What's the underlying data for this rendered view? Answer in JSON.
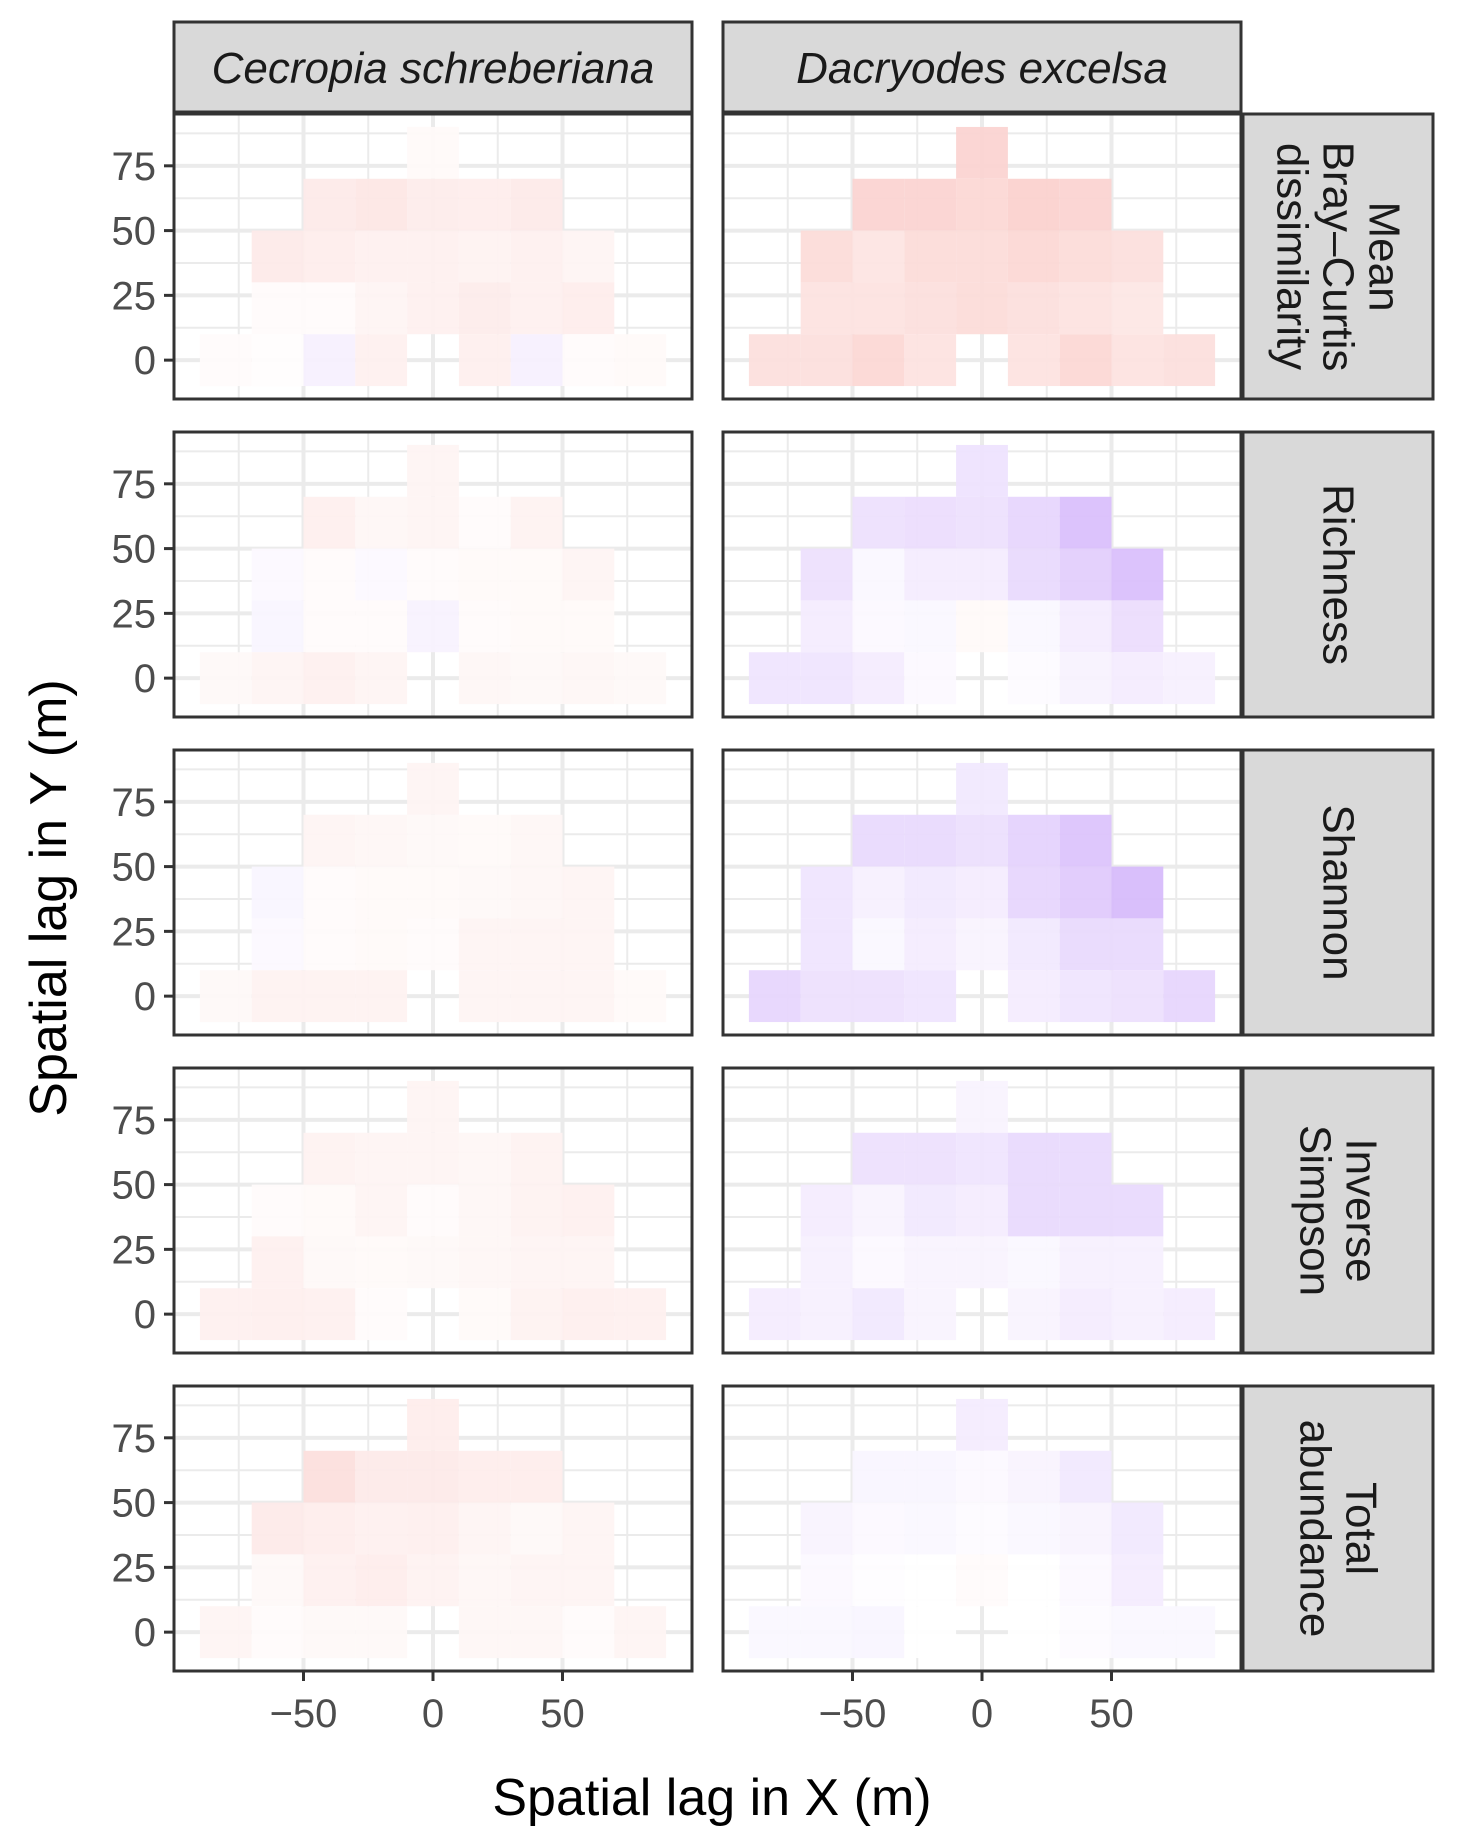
{
  "chart_data": {
    "type": "heatmap",
    "layout": "faceted grid, 5 rows x 2 columns",
    "xlabel": "Spatial lag in X (m)",
    "ylabel": "Spatial lag in Y (m)",
    "x_ticks": [
      -50,
      0,
      50
    ],
    "y_ticks": [
      0,
      25,
      50,
      75
    ],
    "xlim": [
      -100,
      100
    ],
    "ylim": [
      -15,
      95
    ],
    "bin_size_x": 20,
    "bin_size_y": 20,
    "x_bins": [
      -80,
      -60,
      -40,
      -20,
      0,
      20,
      40,
      60,
      80
    ],
    "y_bins": [
      0,
      20,
      40,
      60,
      80
    ],
    "value_encoding": "diverging: positive = red tint, negative = purple tint, 0 = white",
    "colors": {
      "positive": "#f0493d",
      "negative": "#8e3ff5",
      "neutral": "#ffffff",
      "strip_fill": "#d9d9d9",
      "panel_border": "#333333",
      "grid": "#ebebeb",
      "text": "#4d4d4d"
    },
    "column_strips": [
      {
        "label": "Cecropia schreberiana",
        "italic": true
      },
      {
        "label": "Dacryodes excelsa",
        "italic": true
      }
    ],
    "row_strips": [
      {
        "lines": [
          "Mean",
          "Bray–Curtis",
          "dissimilarity"
        ]
      },
      {
        "lines": [
          "Richness"
        ]
      },
      {
        "lines": [
          "Shannon"
        ]
      },
      {
        "lines": [
          "Inverse",
          "Simpson"
        ]
      },
      {
        "lines": [
          "Total",
          "abundance"
        ]
      }
    ],
    "panels": [
      {
        "row": "Mean Bray–Curtis dissimilarity",
        "species": "Cecropia schreberiana",
        "cells": [
          {
            "y": 80,
            "v": [
              null,
              null,
              null,
              null,
              0.03,
              null,
              null,
              null,
              null
            ]
          },
          {
            "y": 60,
            "v": [
              null,
              null,
              0.12,
              0.14,
              0.11,
              0.1,
              0.12,
              null,
              null
            ]
          },
          {
            "y": 40,
            "v": [
              null,
              0.12,
              0.1,
              0.08,
              0.08,
              0.07,
              0.08,
              0.06,
              null
            ]
          },
          {
            "y": 20,
            "v": [
              null,
              0.02,
              0.02,
              0.06,
              0.08,
              0.11,
              0.08,
              0.1,
              null
            ]
          },
          {
            "y": 0,
            "v": [
              0.02,
              0.01,
              -0.08,
              0.08,
              null,
              0.09,
              -0.08,
              0.02,
              0.03
            ]
          }
        ]
      },
      {
        "row": "Mean Bray–Curtis dissimilarity",
        "species": "Dacryodes excelsa",
        "cells": [
          {
            "y": 80,
            "v": [
              null,
              null,
              null,
              null,
              0.24,
              null,
              null,
              null,
              null
            ]
          },
          {
            "y": 60,
            "v": [
              null,
              null,
              0.24,
              0.24,
              0.22,
              0.26,
              0.24,
              null,
              null
            ]
          },
          {
            "y": 40,
            "v": [
              null,
              0.2,
              0.15,
              0.2,
              0.2,
              0.22,
              0.2,
              0.18,
              null
            ]
          },
          {
            "y": 20,
            "v": [
              null,
              0.16,
              0.16,
              0.18,
              0.2,
              0.18,
              0.16,
              0.14,
              null
            ]
          },
          {
            "y": 0,
            "v": [
              0.18,
              0.18,
              0.22,
              0.16,
              null,
              0.16,
              0.22,
              0.16,
              0.18
            ]
          }
        ]
      },
      {
        "row": "Richness",
        "species": "Cecropia schreberiana",
        "cells": [
          {
            "y": 80,
            "v": [
              null,
              null,
              null,
              null,
              0.06,
              null,
              null,
              null,
              null
            ]
          },
          {
            "y": 60,
            "v": [
              null,
              null,
              0.09,
              0.05,
              0.06,
              0.02,
              0.07,
              null,
              null
            ]
          },
          {
            "y": 40,
            "v": [
              null,
              -0.03,
              0.02,
              -0.03,
              0.02,
              0.03,
              0.03,
              0.06,
              null
            ]
          },
          {
            "y": 20,
            "v": [
              null,
              -0.05,
              0.02,
              0.02,
              -0.07,
              0.02,
              0.03,
              0.03,
              null
            ]
          },
          {
            "y": 0,
            "v": [
              0.04,
              0.06,
              0.08,
              0.06,
              null,
              0.05,
              0.04,
              0.05,
              0.04
            ]
          }
        ]
      },
      {
        "row": "Richness",
        "species": "Dacryodes excelsa",
        "cells": [
          {
            "y": 80,
            "v": [
              null,
              null,
              null,
              null,
              -0.15,
              null,
              null,
              null,
              null
            ]
          },
          {
            "y": 60,
            "v": [
              null,
              null,
              -0.16,
              -0.18,
              -0.16,
              -0.22,
              -0.34,
              null,
              null
            ]
          },
          {
            "y": 40,
            "v": [
              null,
              -0.16,
              -0.04,
              -0.1,
              -0.1,
              -0.2,
              -0.26,
              -0.34,
              null
            ]
          },
          {
            "y": 20,
            "v": [
              null,
              -0.1,
              -0.03,
              -0.04,
              0.03,
              -0.04,
              -0.1,
              -0.18,
              null
            ]
          },
          {
            "y": 0,
            "v": [
              -0.14,
              -0.14,
              -0.1,
              -0.03,
              null,
              -0.02,
              -0.07,
              -0.1,
              -0.08
            ]
          }
        ]
      },
      {
        "row": "Shannon",
        "species": "Cecropia schreberiana",
        "cells": [
          {
            "y": 80,
            "v": [
              null,
              null,
              null,
              null,
              0.06,
              null,
              null,
              null,
              null
            ]
          },
          {
            "y": 60,
            "v": [
              null,
              null,
              0.06,
              0.05,
              0.04,
              0.03,
              0.05,
              null,
              null
            ]
          },
          {
            "y": 40,
            "v": [
              null,
              -0.05,
              0.02,
              0.03,
              0.03,
              0.04,
              0.05,
              0.06,
              null
            ]
          },
          {
            "y": 20,
            "v": [
              null,
              -0.03,
              0.02,
              0.03,
              0.02,
              0.06,
              0.06,
              0.06,
              null
            ]
          },
          {
            "y": 0,
            "v": [
              0.04,
              0.07,
              0.07,
              0.07,
              null,
              0.06,
              0.06,
              0.06,
              0.03
            ]
          }
        ]
      },
      {
        "row": "Shannon",
        "species": "Dacryodes excelsa",
        "cells": [
          {
            "y": 80,
            "v": [
              null,
              null,
              null,
              null,
              -0.12,
              null,
              null,
              null,
              null
            ]
          },
          {
            "y": 60,
            "v": [
              null,
              null,
              -0.2,
              -0.2,
              -0.17,
              -0.24,
              -0.32,
              null,
              null
            ]
          },
          {
            "y": 40,
            "v": [
              null,
              -0.14,
              -0.08,
              -0.12,
              -0.1,
              -0.22,
              -0.28,
              -0.36,
              null
            ]
          },
          {
            "y": 20,
            "v": [
              null,
              -0.14,
              -0.04,
              -0.1,
              -0.06,
              -0.12,
              -0.2,
              -0.2,
              null
            ]
          },
          {
            "y": 0,
            "v": [
              -0.22,
              -0.16,
              -0.16,
              -0.14,
              null,
              -0.1,
              -0.14,
              -0.16,
              -0.22
            ]
          }
        ]
      },
      {
        "row": "Inverse Simpson",
        "species": "Cecropia schreberiana",
        "cells": [
          {
            "y": 80,
            "v": [
              null,
              null,
              null,
              null,
              0.06,
              null,
              null,
              null,
              null
            ]
          },
          {
            "y": 60,
            "v": [
              null,
              null,
              0.07,
              0.06,
              0.06,
              0.05,
              0.07,
              null,
              null
            ]
          },
          {
            "y": 40,
            "v": [
              null,
              0.02,
              0.03,
              0.06,
              0.02,
              0.05,
              0.07,
              0.08,
              null
            ]
          },
          {
            "y": 20,
            "v": [
              null,
              0.08,
              0.04,
              0.03,
              0.04,
              0.05,
              0.06,
              0.06,
              null
            ]
          },
          {
            "y": 0,
            "v": [
              0.08,
              0.09,
              0.08,
              0.02,
              null,
              0.03,
              0.07,
              0.09,
              0.08
            ]
          }
        ]
      },
      {
        "row": "Inverse Simpson",
        "species": "Dacryodes excelsa",
        "cells": [
          {
            "y": 80,
            "v": [
              null,
              null,
              null,
              null,
              -0.06,
              null,
              null,
              null,
              null
            ]
          },
          {
            "y": 60,
            "v": [
              null,
              null,
              -0.16,
              -0.16,
              -0.14,
              -0.2,
              -0.2,
              null,
              null
            ]
          },
          {
            "y": 40,
            "v": [
              null,
              -0.1,
              -0.06,
              -0.12,
              -0.1,
              -0.2,
              -0.2,
              -0.2,
              null
            ]
          },
          {
            "y": 20,
            "v": [
              null,
              -0.08,
              -0.03,
              -0.06,
              -0.06,
              -0.04,
              -0.08,
              -0.08,
              null
            ]
          },
          {
            "y": 0,
            "v": [
              -0.1,
              -0.08,
              -0.12,
              -0.06,
              null,
              -0.06,
              -0.1,
              -0.08,
              -0.1
            ]
          }
        ]
      },
      {
        "row": "Total abundance",
        "species": "Cecropia schreberiana",
        "cells": [
          {
            "y": 80,
            "v": [
              null,
              null,
              null,
              null,
              0.1,
              null,
              null,
              null,
              null
            ]
          },
          {
            "y": 60,
            "v": [
              null,
              null,
              0.18,
              0.12,
              0.12,
              0.1,
              0.1,
              null,
              null
            ]
          },
          {
            "y": 40,
            "v": [
              null,
              0.12,
              0.1,
              0.08,
              0.09,
              0.06,
              0.04,
              0.06,
              null
            ]
          },
          {
            "y": 20,
            "v": [
              null,
              0.04,
              0.08,
              0.1,
              0.07,
              0.05,
              0.06,
              0.06,
              null
            ]
          },
          {
            "y": 0,
            "v": [
              0.06,
              0.02,
              0.04,
              0.04,
              null,
              0.05,
              0.05,
              0.02,
              0.06
            ]
          }
        ]
      },
      {
        "row": "Total abundance",
        "species": "Dacryodes excelsa",
        "cells": [
          {
            "y": 80,
            "v": [
              null,
              null,
              null,
              null,
              -0.1,
              null,
              null,
              null,
              null
            ]
          },
          {
            "y": 60,
            "v": [
              null,
              null,
              -0.05,
              -0.05,
              -0.03,
              -0.06,
              -0.12,
              null,
              null
            ]
          },
          {
            "y": 40,
            "v": [
              null,
              -0.06,
              -0.03,
              -0.04,
              -0.02,
              -0.04,
              -0.06,
              -0.12,
              null
            ]
          },
          {
            "y": 20,
            "v": [
              null,
              -0.03,
              -0.01,
              0.0,
              0.02,
              0.0,
              -0.03,
              -0.1,
              null
            ]
          },
          {
            "y": 0,
            "v": [
              -0.04,
              -0.04,
              -0.05,
              0.0,
              null,
              0.0,
              -0.02,
              -0.04,
              -0.04
            ]
          }
        ]
      }
    ]
  }
}
